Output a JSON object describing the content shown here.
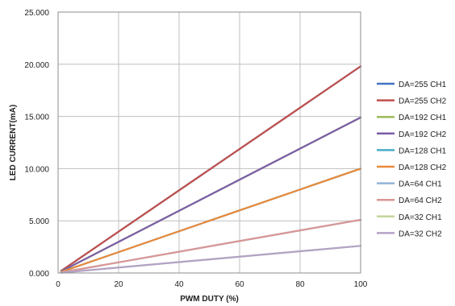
{
  "chart_data": {
    "type": "line",
    "xlabel": "PWM DUTY (%)",
    "ylabel": "LED CURRENT(mA)",
    "xlim": [
      0,
      100
    ],
    "ylim": [
      0,
      25
    ],
    "xticks": [
      0,
      20,
      40,
      60,
      80,
      100
    ],
    "xtick_labels": [
      "0",
      "20",
      "40",
      "60",
      "80",
      "100"
    ],
    "yticks": [
      0,
      5,
      10,
      15,
      20,
      25
    ],
    "ytick_labels": [
      "0.000",
      "5.000",
      "10.000",
      "15.000",
      "20.000",
      "25.000"
    ],
    "grid": true,
    "legend_position": "right",
    "series": [
      {
        "name": "DA=255 CH1",
        "color": "#4472c4",
        "x": [
          1,
          100
        ],
        "y": [
          0.2,
          19.8
        ]
      },
      {
        "name": "DA=255 CH2",
        "color": "#c0504d",
        "x": [
          1,
          100
        ],
        "y": [
          0.2,
          19.8
        ]
      },
      {
        "name": "DA=192 CH1",
        "color": "#9bbb59",
        "x": [
          1,
          100
        ],
        "y": [
          0.15,
          14.9
        ]
      },
      {
        "name": "DA=192 CH2",
        "color": "#7a5ea6",
        "x": [
          1,
          100
        ],
        "y": [
          0.15,
          14.9
        ]
      },
      {
        "name": "DA=128 CH1",
        "color": "#4bacc6",
        "x": [
          1,
          100
        ],
        "y": [
          0.1,
          10.0
        ]
      },
      {
        "name": "DA=128 CH2",
        "color": "#e8893a",
        "x": [
          1,
          100
        ],
        "y": [
          0.1,
          10.0
        ]
      },
      {
        "name": "DA=64 CH1",
        "color": "#95b3d7",
        "x": [
          1,
          100
        ],
        "y": [
          0.05,
          5.1
        ]
      },
      {
        "name": "DA=64 CH2",
        "color": "#d99694",
        "x": [
          1,
          100
        ],
        "y": [
          0.05,
          5.1
        ]
      },
      {
        "name": "DA=32 CH1",
        "color": "#c3d69b",
        "x": [
          1,
          100
        ],
        "y": [
          0.03,
          2.6
        ]
      },
      {
        "name": "DA=32 CH2",
        "color": "#b3a2c7",
        "x": [
          1,
          100
        ],
        "y": [
          0.03,
          2.6
        ]
      }
    ]
  }
}
